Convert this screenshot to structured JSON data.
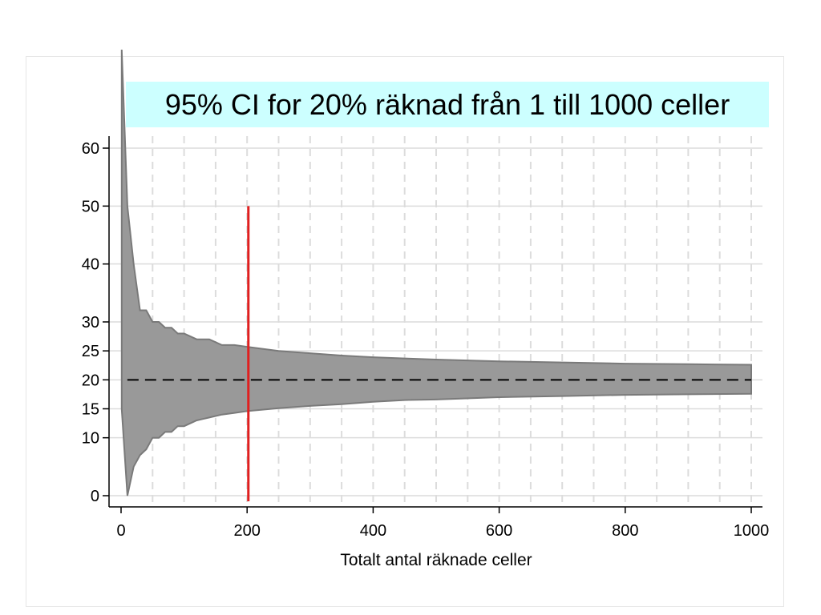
{
  "chart_data": {
    "type": "area",
    "title": "95% CI for 20% räknad från 1 till 1000 celler",
    "xlabel": "Totalt antal räknade celler",
    "ylabel": "",
    "xlim": [
      0,
      1000
    ],
    "ylim": [
      0,
      60
    ],
    "x_ticks": [
      0,
      200,
      400,
      600,
      800,
      1000
    ],
    "y_ticks": [
      0,
      10,
      15,
      20,
      25,
      30,
      40,
      50,
      60
    ],
    "vertical_gridlines_dashed": [
      50,
      100,
      150,
      200,
      250,
      300,
      350,
      400,
      450,
      500,
      550,
      600,
      650,
      700,
      750,
      800,
      850,
      900,
      950,
      1000
    ],
    "grid": true,
    "series": [
      {
        "kind": "confidence_band",
        "x": [
          1,
          10,
          20,
          30,
          40,
          50,
          60,
          70,
          80,
          90,
          100,
          120,
          140,
          160,
          180,
          200,
          250,
          300,
          350,
          400,
          450,
          500,
          600,
          700,
          800,
          900,
          1000
        ],
        "upper": [
          77,
          50,
          40,
          32,
          32,
          30,
          30,
          29,
          29,
          28,
          28,
          27,
          27,
          26,
          26,
          25.7,
          25,
          24.6,
          24.2,
          23.9,
          23.7,
          23.5,
          23.2,
          23.0,
          22.8,
          22.7,
          22.6
        ],
        "lower": [
          15,
          0,
          5,
          7,
          8,
          10,
          10,
          11,
          11,
          12,
          12,
          13,
          13.5,
          14,
          14.3,
          14.6,
          15.1,
          15.5,
          15.8,
          16.2,
          16.5,
          16.6,
          17,
          17.2,
          17.4,
          17.5,
          17.6
        ]
      },
      {
        "kind": "reference_line",
        "style": "dashed",
        "y": 20,
        "x_range": [
          10,
          1000
        ]
      },
      {
        "kind": "marker_line",
        "x": 202,
        "y_range": [
          0,
          50
        ]
      }
    ],
    "colors": {
      "band_fill": "#999999",
      "band_edge": "#7a7a7a",
      "marker_line": "#e02020",
      "reference_line": "#000000",
      "gridline": "#dcdcdc",
      "title_background": "#ccffff"
    }
  }
}
